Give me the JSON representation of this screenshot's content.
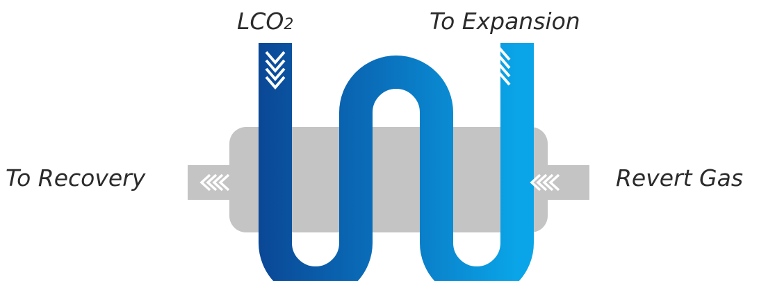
{
  "labels": {
    "inlet_main": "LCO",
    "inlet_sub": "2",
    "outlet": "To Expansion",
    "left_side": "To Recovery",
    "right_side": "Revert Gas"
  },
  "colors": {
    "tube_dark": "#0a4795",
    "tube_mid": "#0a72be",
    "tube_light": "#0aa5e8",
    "body_gray": "#c4c4c4",
    "arrow_white": "#ffffff",
    "text": "#2b2b2b"
  },
  "icons": {
    "inlet_arrows": "chevrons-down-icon",
    "outlet_arrows": "chevrons-up-icon",
    "left_arrows": "chevrons-left-icon",
    "right_arrows": "chevrons-left-icon"
  }
}
